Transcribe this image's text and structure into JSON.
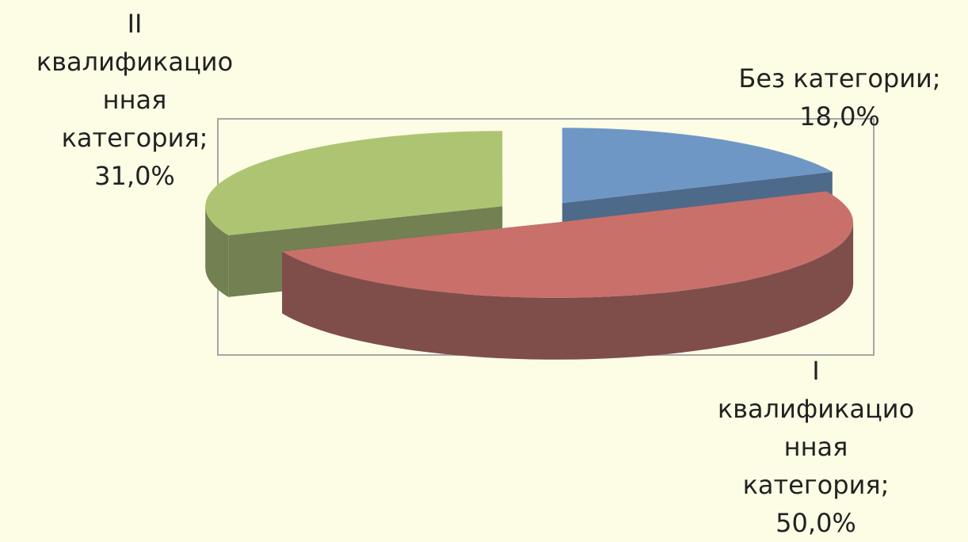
{
  "chart_data": {
    "type": "pie",
    "style": "3d-exploded",
    "slices": [
      {
        "label": "Без категории",
        "value": 18.0,
        "value_text": "18,0%",
        "label_lines": [
          "Без категории;",
          "18,0%"
        ],
        "color": "#6F97C6",
        "side_color": "#4E6A8A"
      },
      {
        "label": "I квалификационная категория",
        "value": 50.0,
        "value_text": "50,0%",
        "label_lines": [
          "I",
          "квалификацио",
          "нная",
          "категория;",
          "50,0%"
        ],
        "color": "#C9706B",
        "side_color": "#7F4E4B"
      },
      {
        "label": "II квалификационная категория",
        "value": 31.0,
        "value_text": "31,0%",
        "label_lines": [
          "II",
          "квалификацио",
          "нная",
          "категория;",
          "31,0%"
        ],
        "color": "#ADC572",
        "side_color": "#728052"
      }
    ],
    "legend": "none",
    "plot_area_border": true
  }
}
